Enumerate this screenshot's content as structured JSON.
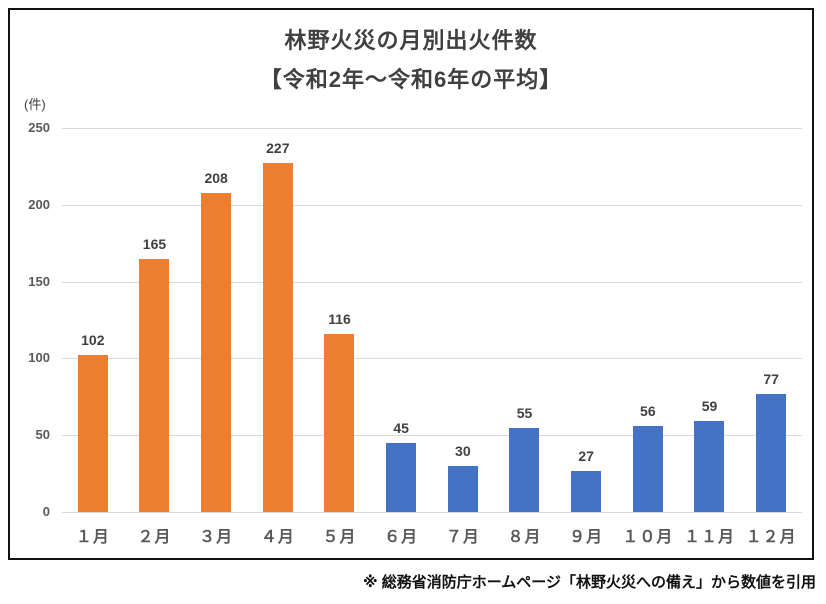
{
  "title": {
    "line1": "林野火災の月別出火件数",
    "line2": "【令和2年～令和6年の平均】"
  },
  "chart_data": {
    "type": "bar",
    "title": "林野火災の月別出火件数【令和2年～令和6年の平均】",
    "categories": [
      "１月",
      "２月",
      "３月",
      "４月",
      "５月",
      "６月",
      "７月",
      "８月",
      "９月",
      "１０月",
      "１１月",
      "１２月"
    ],
    "values": [
      102,
      165,
      208,
      227,
      116,
      45,
      30,
      55,
      27,
      56,
      59,
      77
    ],
    "bar_colors": [
      "#ED7D31",
      "#ED7D31",
      "#ED7D31",
      "#ED7D31",
      "#ED7D31",
      "#4472C4",
      "#4472C4",
      "#4472C4",
      "#4472C4",
      "#4472C4",
      "#4472C4",
      "#4472C4"
    ],
    "ylabel": "(件)",
    "xlabel": "",
    "ylim": [
      0,
      250
    ],
    "yticks": [
      0,
      50,
      100,
      150,
      200,
      250
    ],
    "grid": true,
    "legend": "none",
    "data_labels": true
  },
  "footer": {
    "text": "※ 総務省消防庁ホームページ「林野火災への備え」から数値を引用"
  },
  "colors": {
    "bar_orange": "#ED7D31",
    "bar_blue": "#4472C4",
    "gridline": "#D9D9D9",
    "axis_label": "#595959",
    "data_label": "#404040",
    "title_text": "#404040",
    "border": "#111111"
  }
}
